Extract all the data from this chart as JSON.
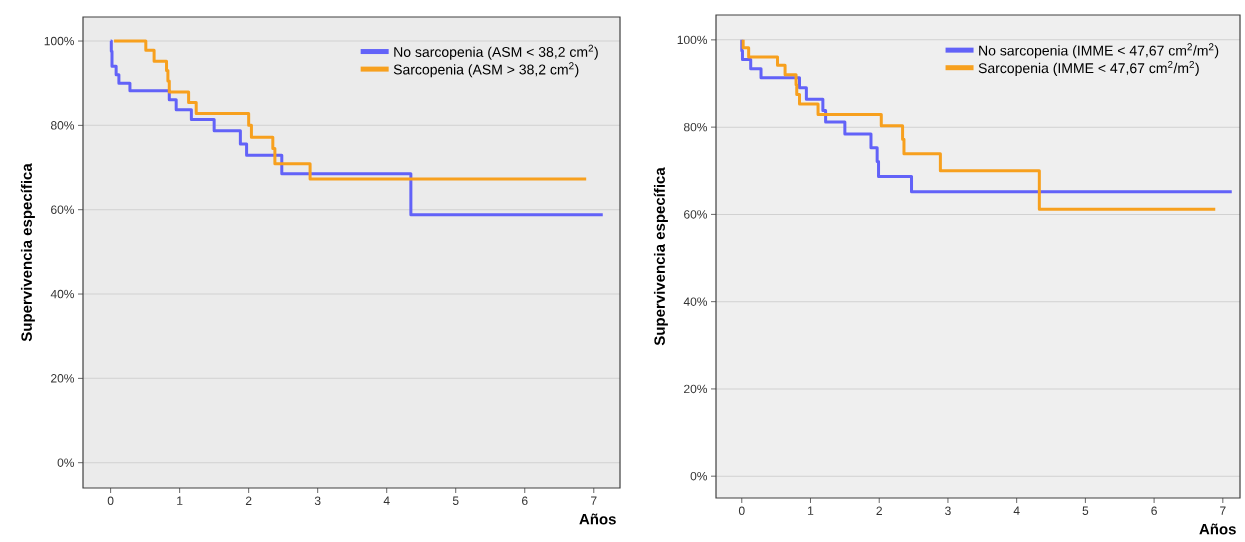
{
  "chart_data": [
    {
      "type": "step",
      "xlabel": "Años",
      "ylabel": "Supervivencia específica",
      "xlim": [
        -0.4,
        7.38
      ],
      "ylim": [
        -6,
        105.7
      ],
      "xticks": [
        0,
        1,
        2,
        3,
        4,
        5,
        6,
        7
      ],
      "yticks": [
        {
          "value": 0,
          "label": "0%"
        },
        {
          "value": 20,
          "label": "20%"
        },
        {
          "value": 40,
          "label": "40%"
        },
        {
          "value": 60,
          "label": "60%"
        },
        {
          "value": 80,
          "label": "80%"
        },
        {
          "value": 100,
          "label": "100%"
        }
      ],
      "grid": "y",
      "legend": "top right",
      "series": [
        {
          "name": "No sarcopenia (ASM < 38,2 cm$^{2}$)",
          "color": "#6262f8",
          "x": [
            0.0,
            0.01,
            0.02,
            0.08,
            0.12,
            0.28,
            0.85,
            0.95,
            1.17,
            1.5,
            1.88,
            1.97,
            2.48,
            4.35,
            7.13
          ],
          "values": [
            100,
            97.6,
            94,
            92,
            90,
            88.2,
            86.1,
            83.7,
            81.4,
            78.7,
            75.6,
            72.9,
            68.5,
            58.8,
            58.8
          ]
        },
        {
          "name": "Sarcopenia (ASM > 38,2 cm$^{2}$)",
          "color": "#f7a01e",
          "x": [
            0.05,
            0.51,
            0.63,
            0.81,
            0.83,
            0.85,
            1.13,
            1.24,
            2.0,
            2.04,
            2.35,
            2.38,
            2.89,
            6.89
          ],
          "values": [
            100,
            97.8,
            95.2,
            93,
            90.5,
            87.9,
            85.4,
            82.8,
            80,
            77.2,
            74.5,
            70.9,
            67.3,
            67.3
          ]
        }
      ]
    },
    {
      "type": "step",
      "xlabel": "Años",
      "ylabel": "Supervivencia específica",
      "xlim": [
        -0.375,
        7.25
      ],
      "ylim": [
        -5,
        105.7
      ],
      "xticks": [
        0,
        1,
        2,
        3,
        4,
        5,
        6,
        7
      ],
      "yticks": [
        {
          "value": 0,
          "label": "0%"
        },
        {
          "value": 20,
          "label": "20%"
        },
        {
          "value": 40,
          "label": "40%"
        },
        {
          "value": 60,
          "label": "60%"
        },
        {
          "value": 80,
          "label": "80%"
        },
        {
          "value": 100,
          "label": "100%"
        }
      ],
      "grid": "y",
      "legend": "top right",
      "series": [
        {
          "name": "No sarcopenia (IMME < 47,67 cm$^{2}$/m$^{2}$)",
          "color": "#6262f8",
          "x": [
            0.0,
            0.0,
            0.01,
            0.13,
            0.28,
            0.84,
            0.94,
            1.18,
            1.22,
            1.5,
            1.88,
            1.97,
            1.99,
            2.47,
            7.13
          ],
          "values": [
            100,
            97.5,
            95.5,
            93.4,
            91.3,
            89.0,
            86.4,
            83.8,
            81.2,
            78.4,
            75.3,
            72.1,
            68.7,
            65.2,
            65.2
          ]
        },
        {
          "name": "Sarcopenia (IMME < 47,67 cm$^{2}$/m$^{2}$)",
          "color": "#f7a01e",
          "x": [
            0.02,
            0.02,
            0.1,
            0.52,
            0.63,
            0.79,
            0.8,
            0.84,
            1.11,
            2.03,
            2.34,
            2.36,
            2.89,
            4.33,
            6.89
          ],
          "values": [
            100,
            98.2,
            96.1,
            94.2,
            92.0,
            89.7,
            87.5,
            85.3,
            82.9,
            80.3,
            77.2,
            73.9,
            70.0,
            61.2,
            61.2
          ]
        }
      ]
    }
  ]
}
